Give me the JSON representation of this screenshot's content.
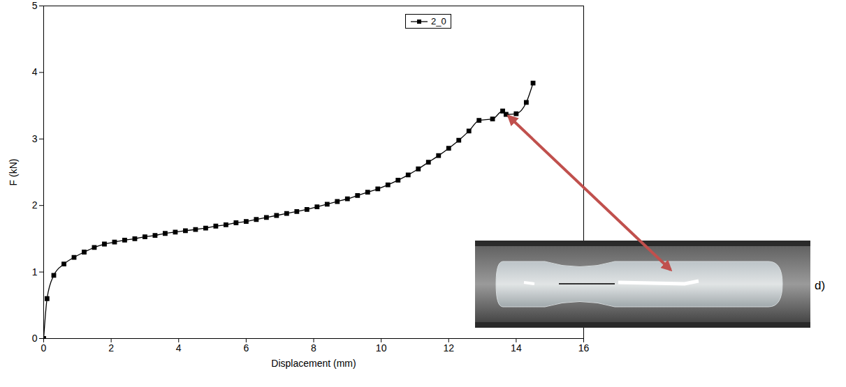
{
  "chart_data": {
    "type": "line",
    "x_label": "Displacement (mm)",
    "y_label": "F (kN)",
    "x": [
      0,
      0.1,
      0.3,
      0.6,
      0.9,
      1.2,
      1.5,
      1.8,
      2.1,
      2.4,
      2.7,
      3.0,
      3.3,
      3.6,
      3.9,
      4.2,
      4.5,
      4.8,
      5.1,
      5.4,
      5.7,
      6.0,
      6.3,
      6.6,
      6.9,
      7.2,
      7.5,
      7.8,
      8.1,
      8.4,
      8.7,
      9.0,
      9.3,
      9.6,
      9.9,
      10.2,
      10.5,
      10.8,
      11.1,
      11.4,
      11.7,
      12.0,
      12.3,
      12.6,
      12.9,
      13.3,
      13.6,
      13.7,
      14.0,
      14.3,
      14.5
    ],
    "series": [
      {
        "name": "2_0",
        "color": "#000000",
        "marker": "square",
        "values": [
          0,
          0.6,
          0.95,
          1.12,
          1.22,
          1.3,
          1.37,
          1.42,
          1.45,
          1.48,
          1.5,
          1.53,
          1.55,
          1.58,
          1.6,
          1.62,
          1.64,
          1.66,
          1.69,
          1.71,
          1.74,
          1.76,
          1.79,
          1.82,
          1.85,
          1.88,
          1.91,
          1.94,
          1.98,
          2.02,
          2.06,
          2.1,
          2.15,
          2.2,
          2.25,
          2.31,
          2.38,
          2.46,
          2.55,
          2.65,
          2.75,
          2.86,
          2.98,
          3.12,
          3.28,
          3.3,
          3.42,
          3.37,
          3.38,
          3.55,
          3.84
        ]
      }
    ],
    "xlim": [
      0,
      16
    ],
    "xticks": [
      0,
      2,
      4,
      6,
      8,
      10,
      12,
      14,
      16
    ],
    "ylim": [
      0,
      5
    ],
    "yticks": [
      0,
      1,
      2,
      3,
      4,
      5
    ],
    "legend": "top-right",
    "annotations": [
      {
        "text": "d)"
      },
      {
        "type": "arrow",
        "x": 13.7,
        "y": 3.37
      }
    ]
  }
}
